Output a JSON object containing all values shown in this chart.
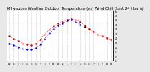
{
  "title": "Milwaukee Weather Outdoor Temperature (vs) Wind Chill (Last 24 Hours)",
  "title_fontsize": 3.8,
  "bg_color": "#e8e8e8",
  "plot_bg": "#ffffff",
  "x": [
    0,
    1,
    2,
    3,
    4,
    5,
    6,
    7,
    8,
    9,
    10,
    11,
    12,
    13,
    14,
    15,
    16,
    17,
    18,
    19,
    20,
    21,
    22,
    23
  ],
  "temp": [
    22,
    19,
    17,
    14,
    13,
    12,
    14,
    18,
    24,
    29,
    33,
    36,
    38,
    40,
    41,
    40,
    38,
    34,
    30,
    27,
    24,
    22,
    20,
    18
  ],
  "wind_chill": [
    14,
    12,
    10,
    8,
    7,
    7,
    9,
    13,
    19,
    25,
    30,
    34,
    36,
    39,
    40,
    38,
    35,
    null,
    null,
    null,
    null,
    null,
    null,
    null
  ],
  "black_pts": [
    null,
    null,
    null,
    null,
    null,
    null,
    null,
    null,
    null,
    null,
    null,
    null,
    null,
    null,
    null,
    null,
    null,
    32,
    null,
    null,
    null,
    null,
    null,
    null
  ],
  "temp_color": "#dd0000",
  "wind_color": "#0000cc",
  "black_color": "#000000",
  "grid_color": "#999999",
  "grid_style": "dotted",
  "ylim": [
    -5,
    50
  ],
  "xlim": [
    -0.5,
    23.5
  ],
  "yticks": [
    50,
    45,
    40,
    35,
    30,
    25,
    20,
    15,
    10,
    5,
    0,
    -5
  ],
  "ytick_labels": [
    "50",
    "45",
    "40",
    "35",
    "30",
    "25",
    "20",
    "15",
    "10",
    "5",
    "0",
    "-5"
  ],
  "xticks": [
    0,
    1,
    2,
    3,
    4,
    5,
    6,
    7,
    8,
    9,
    10,
    11,
    12,
    13,
    14,
    15,
    16,
    17,
    18,
    19,
    20,
    21,
    22,
    23
  ],
  "xtick_labels": [
    "12",
    "1",
    "2",
    "3",
    "4",
    "5",
    "6",
    "7",
    "8",
    "9",
    "10",
    "11",
    "12",
    "1",
    "2",
    "3",
    "4",
    "5",
    "6",
    "7",
    "8",
    "9",
    "10",
    "11"
  ]
}
